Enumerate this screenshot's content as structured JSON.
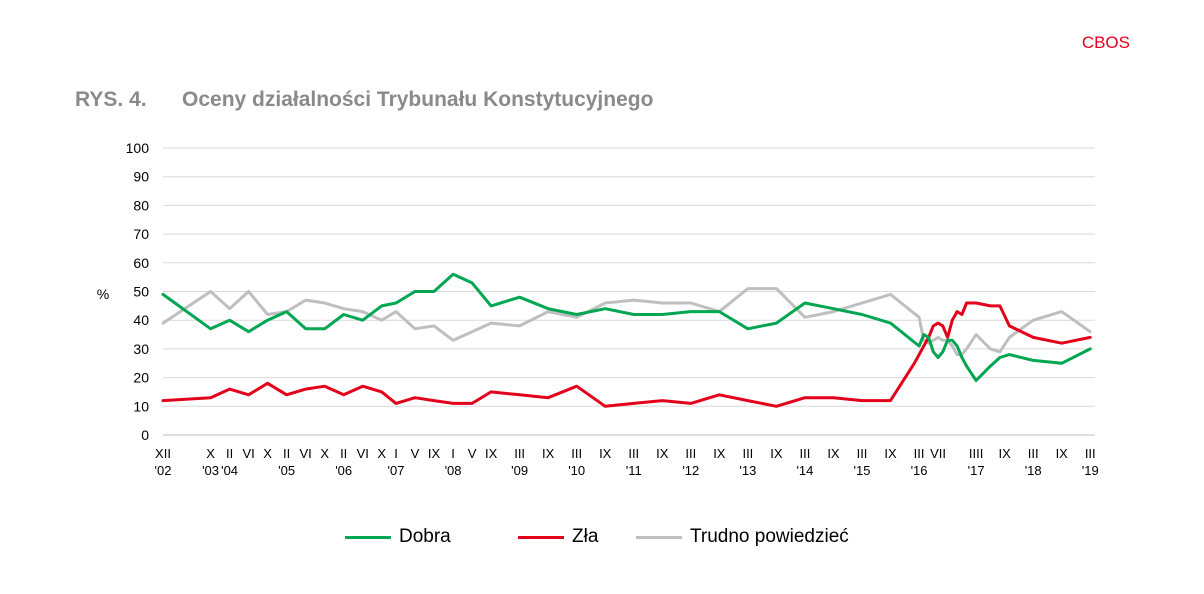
{
  "header": {
    "brand": "CBOS"
  },
  "title": {
    "fig_no": "RYS. 4.",
    "text": "Oceny działalności Trybunału Konstytucyjnego"
  },
  "chart_data": {
    "type": "line",
    "ylabel": "%",
    "ylim": [
      0,
      100
    ],
    "yticks": [
      0,
      10,
      20,
      30,
      40,
      50,
      60,
      70,
      80,
      90,
      100
    ],
    "grid": true,
    "legend_position": "bottom",
    "x_range": [
      0,
      196
    ],
    "x_ticks": [
      {
        "x": 0,
        "label": "XII",
        "year": "'02"
      },
      {
        "x": 10,
        "label": "X",
        "year": "'03"
      },
      {
        "x": 14,
        "label": "II",
        "year": "'04"
      },
      {
        "x": 18,
        "label": "VI",
        "year": ""
      },
      {
        "x": 22,
        "label": "X",
        "year": ""
      },
      {
        "x": 26,
        "label": "II",
        "year": "'05"
      },
      {
        "x": 30,
        "label": "VI",
        "year": ""
      },
      {
        "x": 34,
        "label": "X",
        "year": ""
      },
      {
        "x": 38,
        "label": "II",
        "year": "'06"
      },
      {
        "x": 42,
        "label": "VI",
        "year": ""
      },
      {
        "x": 46,
        "label": "X",
        "year": ""
      },
      {
        "x": 49,
        "label": "I",
        "year": "'07"
      },
      {
        "x": 53,
        "label": "V",
        "year": ""
      },
      {
        "x": 57,
        "label": "IX",
        "year": ""
      },
      {
        "x": 61,
        "label": "I",
        "year": "'08"
      },
      {
        "x": 65,
        "label": "V",
        "year": ""
      },
      {
        "x": 69,
        "label": "IX",
        "year": ""
      },
      {
        "x": 75,
        "label": "III",
        "year": "'09"
      },
      {
        "x": 81,
        "label": "IX",
        "year": ""
      },
      {
        "x": 87,
        "label": "III",
        "year": "'10"
      },
      {
        "x": 93,
        "label": "IX",
        "year": ""
      },
      {
        "x": 99,
        "label": "III",
        "year": "'11"
      },
      {
        "x": 105,
        "label": "IX",
        "year": ""
      },
      {
        "x": 111,
        "label": "III",
        "year": "'12"
      },
      {
        "x": 117,
        "label": "IX",
        "year": ""
      },
      {
        "x": 123,
        "label": "III",
        "year": "'13"
      },
      {
        "x": 129,
        "label": "IX",
        "year": ""
      },
      {
        "x": 135,
        "label": "III",
        "year": "'14"
      },
      {
        "x": 141,
        "label": "IX",
        "year": ""
      },
      {
        "x": 147,
        "label": "III",
        "year": "'15"
      },
      {
        "x": 153,
        "label": "IX",
        "year": ""
      },
      {
        "x": 159,
        "label": "III",
        "year": "'16"
      },
      {
        "x": 163,
        "label": "VII",
        "year": ""
      },
      {
        "x": 171,
        "label": "IIII",
        "year": "'17"
      },
      {
        "x": 177,
        "label": "IX",
        "year": ""
      },
      {
        "x": 183,
        "label": "III",
        "year": "'18"
      },
      {
        "x": 189,
        "label": "IX",
        "year": ""
      },
      {
        "x": 195,
        "label": "III",
        "year": "'19"
      }
    ],
    "series": [
      {
        "name": "Dobra",
        "color": "#00a651",
        "x": [
          0,
          10,
          14,
          18,
          22,
          26,
          30,
          34,
          38,
          42,
          46,
          49,
          53,
          57,
          61,
          65,
          69,
          75,
          81,
          87,
          93,
          99,
          105,
          111,
          117,
          123,
          129,
          135,
          141,
          147,
          153,
          159,
          160,
          161,
          162,
          163,
          164,
          165,
          166,
          167,
          168,
          169,
          171,
          174,
          176,
          178,
          183,
          189,
          195
        ],
        "y": [
          49,
          37,
          40,
          36,
          40,
          43,
          37,
          37,
          42,
          40,
          45,
          46,
          50,
          50,
          56,
          53,
          45,
          48,
          44,
          42,
          44,
          42,
          42,
          43,
          43,
          37,
          39,
          46,
          44,
          42,
          39,
          31,
          35,
          34,
          29,
          27,
          29,
          33,
          33,
          31,
          27,
          24,
          19,
          24,
          27,
          28,
          26,
          25,
          30
        ]
      },
      {
        "name": "Zła",
        "color": "#e3001b",
        "x": [
          0,
          10,
          14,
          18,
          22,
          26,
          30,
          34,
          38,
          42,
          46,
          49,
          53,
          57,
          61,
          65,
          69,
          75,
          81,
          87,
          93,
          99,
          105,
          111,
          117,
          123,
          129,
          135,
          141,
          147,
          153,
          158,
          159,
          160,
          161,
          162,
          163,
          164,
          165,
          166,
          167,
          168,
          169,
          170,
          171,
          174,
          176,
          178,
          183,
          189,
          195
        ],
        "y": [
          12,
          13,
          16,
          14,
          18,
          14,
          16,
          17,
          14,
          17,
          15,
          11,
          13,
          12,
          11,
          11,
          15,
          14,
          13,
          17,
          10,
          11,
          12,
          11,
          14,
          12,
          10,
          13,
          13,
          12,
          12,
          25,
          28,
          31,
          34,
          38,
          39,
          38,
          34,
          40,
          43,
          42,
          46,
          46,
          46,
          45,
          45,
          38,
          34,
          32,
          34
        ]
      },
      {
        "name": "Trudno powiedzieć",
        "color": "#bfbfbf",
        "x": [
          0,
          10,
          14,
          18,
          22,
          26,
          30,
          34,
          38,
          42,
          46,
          49,
          53,
          57,
          61,
          65,
          69,
          75,
          81,
          87,
          93,
          99,
          105,
          111,
          117,
          123,
          129,
          135,
          141,
          147,
          153,
          159,
          160,
          161,
          162,
          163,
          164,
          165,
          166,
          167,
          168,
          169,
          171,
          174,
          176,
          178,
          183,
          189,
          195
        ],
        "y": [
          39,
          50,
          44,
          50,
          42,
          43,
          47,
          46,
          44,
          43,
          40,
          43,
          37,
          38,
          33,
          36,
          39,
          38,
          43,
          41,
          46,
          47,
          46,
          46,
          43,
          51,
          51,
          41,
          43,
          46,
          49,
          41,
          33,
          32,
          33,
          34,
          33,
          33,
          31,
          28,
          28,
          30,
          35,
          30,
          29,
          34,
          40,
          43,
          36
        ]
      }
    ]
  }
}
